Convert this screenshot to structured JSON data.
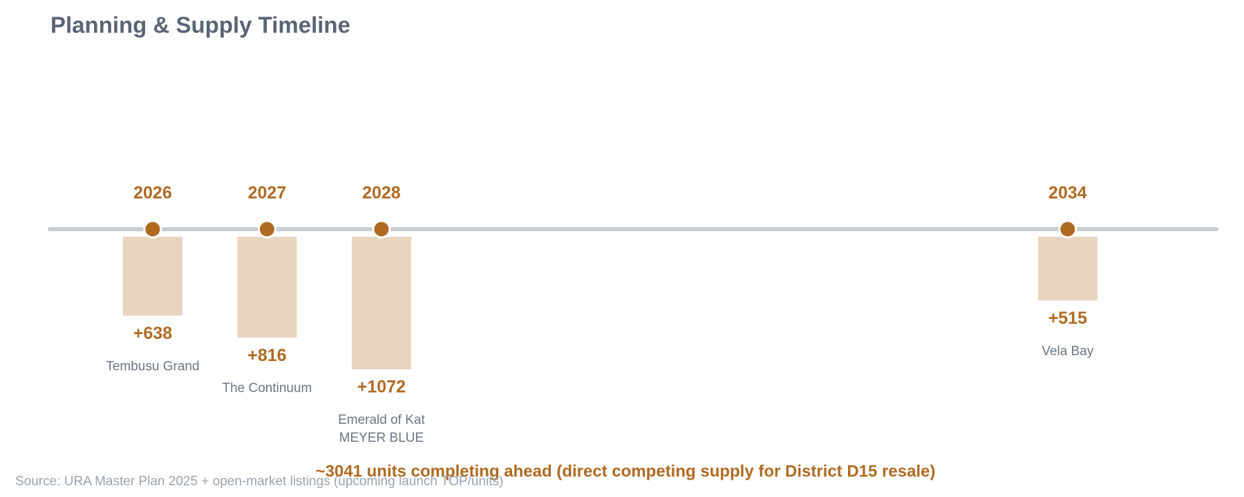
{
  "chart_data": {
    "type": "timeline",
    "title": "Planning & Supply Timeline",
    "x": [
      2026,
      2027,
      2028,
      2034
    ],
    "values": [
      638,
      816,
      1072,
      515
    ],
    "value_labels": [
      "+638",
      "+816",
      "+1072",
      "+515"
    ],
    "labels": [
      [
        "Tembusu Grand"
      ],
      [
        "The Continuum"
      ],
      [
        "Emerald of Kat",
        "MEYER BLUE"
      ],
      [
        "Vela Bay"
      ]
    ],
    "xlim": [
      2025.1,
      2035.3
    ],
    "ylim": [
      0,
      1200
    ],
    "color": "#b06a22",
    "bar_color": "#e8d5c0",
    "axis_color": "#c8cdd4",
    "annotation": "~3041 units completing ahead (direct competing supply for District D15 resale)",
    "source": "Source: URA Master Plan 2025 + open-market listings (upcoming launch TOP/units)"
  }
}
